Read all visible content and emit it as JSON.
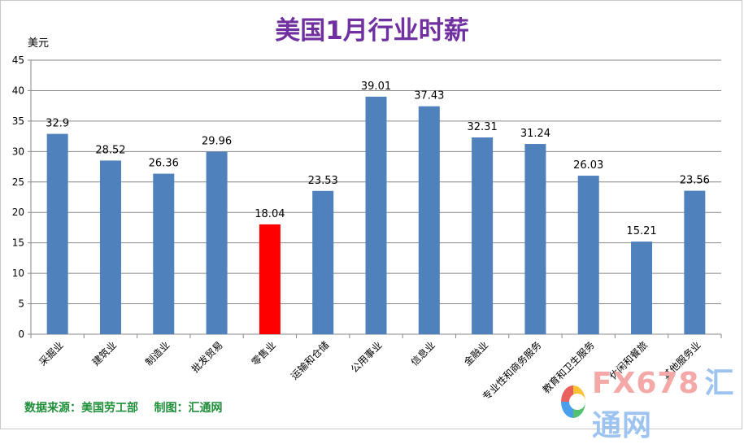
{
  "source_note": "数据来源：美国劳工部    制图：汇通网",
  "logo": {
    "part1": "FX678",
    "part2": "汇通网"
  },
  "colors": {
    "bar": "#4f81bd",
    "highlight": "#ff0000",
    "title": "#7030a0",
    "source": "#1f8f3a",
    "grid": "#878787"
  },
  "chart_data": {
    "type": "bar",
    "title": "美国1月行业时薪",
    "ylabel": "美元",
    "xlabel": "",
    "ylim": [
      0,
      45
    ],
    "yticks": [
      0,
      5,
      10,
      15,
      20,
      25,
      30,
      35,
      40,
      45
    ],
    "grid": true,
    "legend": "none",
    "categories": [
      "采掘业",
      "建筑业",
      "制造业",
      "批发贸易",
      "零售业",
      "运输和仓储",
      "公用事业",
      "信息业",
      "金融业",
      "专业性和商务服务",
      "教育和卫生服务",
      "休闲和餐旅",
      "其他服务业"
    ],
    "values": [
      32.9,
      28.52,
      26.36,
      29.96,
      18.04,
      23.53,
      39.01,
      37.43,
      32.31,
      31.24,
      26.03,
      15.21,
      23.56
    ],
    "value_labels": [
      "32.9",
      "28.52",
      "26.36",
      "29.96",
      "18.04",
      "23.53",
      "39.01",
      "37.43",
      "32.31",
      "31.24",
      "26.03",
      "15.21",
      "23.56"
    ],
    "highlight_index": 4
  }
}
